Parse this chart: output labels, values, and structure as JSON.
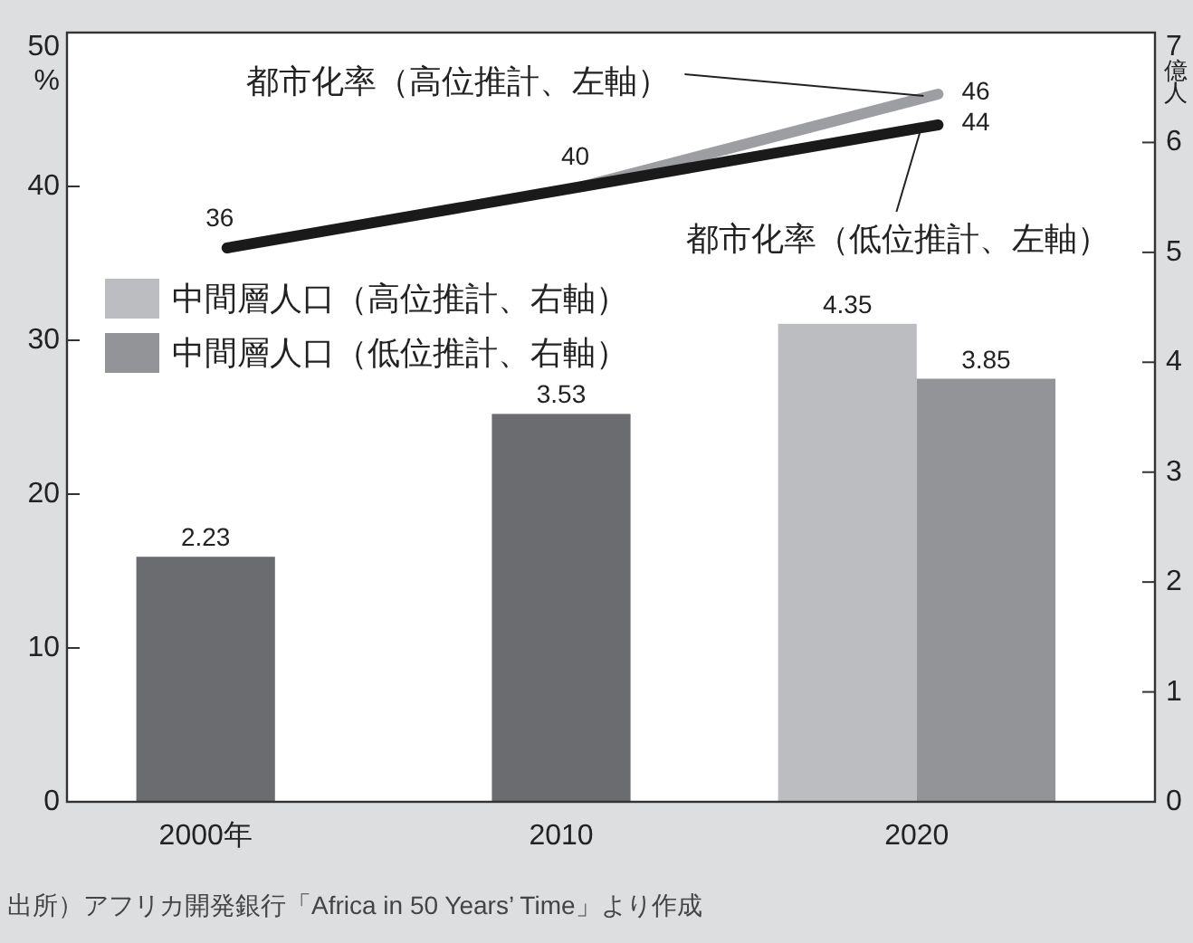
{
  "chart_data": {
    "type": "bar",
    "categories": [
      "2000年",
      "2010",
      "2020"
    ],
    "ylabel": "%",
    "y2label": "億人",
    "ylim": [
      0,
      50
    ],
    "yticks": [
      0,
      10,
      20,
      30,
      40,
      50
    ],
    "y2lim": [
      0,
      7
    ],
    "y2ticks": [
      0,
      1,
      2,
      3,
      4,
      5,
      6,
      7
    ],
    "legend": "top left",
    "series": [
      {
        "name": "中間層人口（高位推計、右軸）",
        "axis": "y2",
        "color": "#bcbdc1",
        "values": [
          null,
          null,
          4.35
        ],
        "value_labels": [
          null,
          null,
          "4.35"
        ]
      },
      {
        "name": "中間層人口（低位推計、右軸）",
        "axis": "y2",
        "color": "#939498",
        "colors": [
          "#6b6c70",
          "#6b6c70",
          "#939498"
        ],
        "values": [
          2.23,
          3.53,
          3.85
        ],
        "value_labels": [
          "2.23",
          "3.53",
          "3.85"
        ]
      },
      {
        "name": "都市化率（高位推計、左軸）",
        "type": "line",
        "color": "#9d9ea2",
        "values": [
          null,
          40,
          46
        ],
        "value_labels": [
          null,
          null,
          "46"
        ]
      },
      {
        "name": "都市化率（低位推計、左軸）",
        "type": "line",
        "color": "#1a1a1a",
        "values": [
          36,
          40,
          44
        ],
        "value_labels": [
          "36",
          "40",
          "44"
        ]
      }
    ],
    "annotations": [
      "出所）アフリカ開発銀行「Africa in 50 Years’ Time」より作成"
    ]
  }
}
